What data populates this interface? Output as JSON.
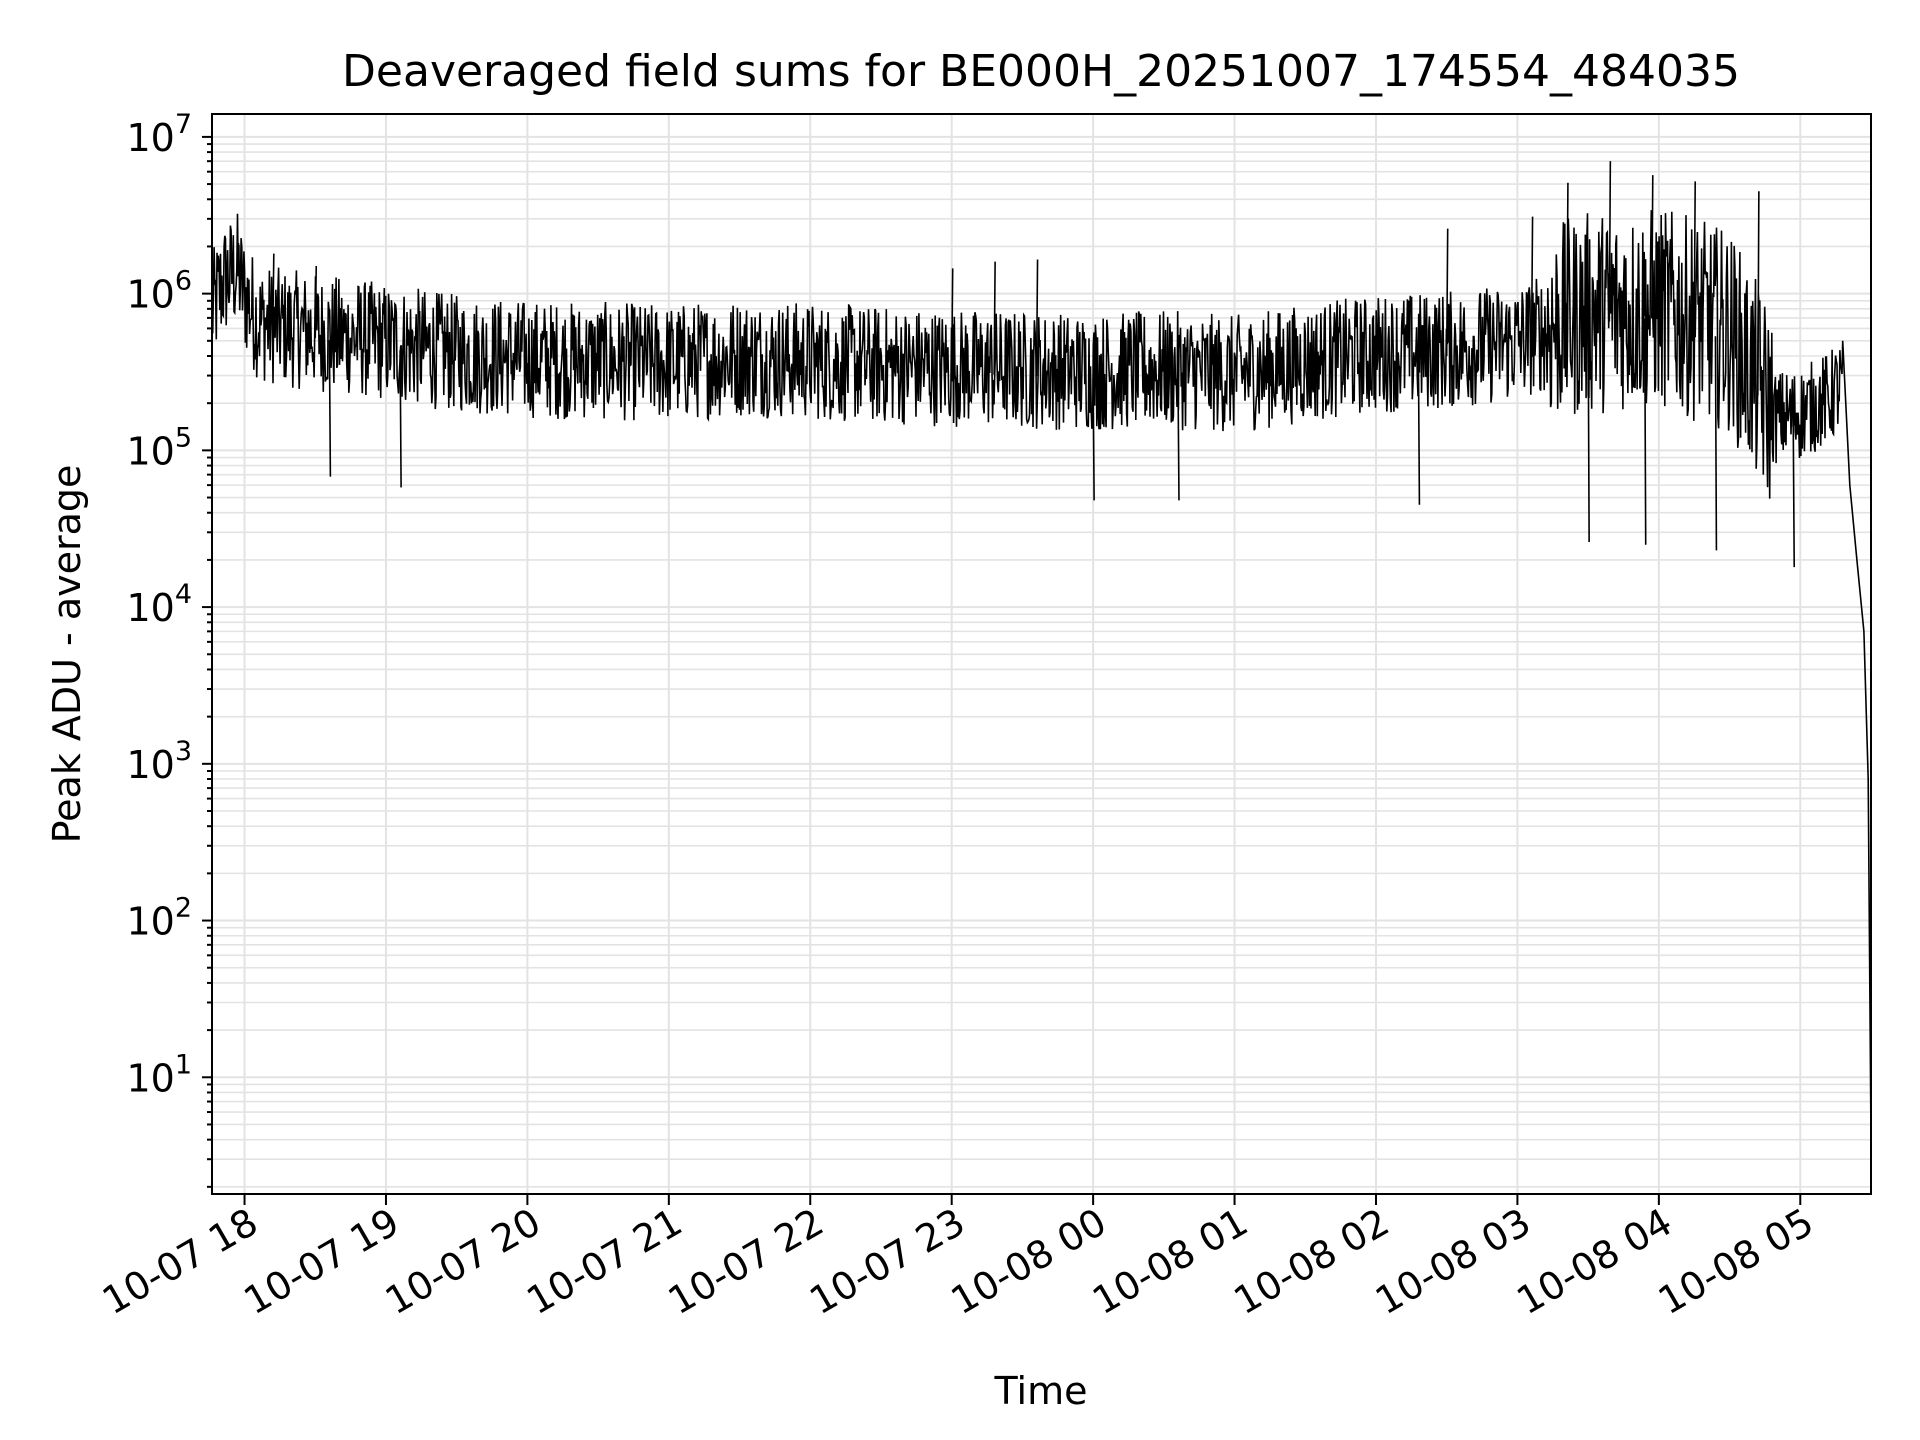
{
  "chart_data": {
    "type": "line",
    "title": "Deaveraged field sums for BE000H_20251007_174554_484035",
    "xlabel": "Time",
    "ylabel": "Peak ADU - average",
    "yscale": "log",
    "ylim": [
      1.8,
      14000000
    ],
    "y_ticks": [
      {
        "value": 10,
        "base": "10",
        "exp": "1"
      },
      {
        "value": 100,
        "base": "10",
        "exp": "2"
      },
      {
        "value": 1000,
        "base": "10",
        "exp": "3"
      },
      {
        "value": 10000,
        "base": "10",
        "exp": "4"
      },
      {
        "value": 100000,
        "base": "10",
        "exp": "5"
      },
      {
        "value": 1000000,
        "base": "10",
        "exp": "6"
      },
      {
        "value": 10000000,
        "base": "10",
        "exp": "7"
      }
    ],
    "x_start": "10-07 17:45",
    "x_range_hours": [
      -0.23,
      11.5
    ],
    "x_ticks": [
      {
        "hour": 0,
        "label": "10-07 18"
      },
      {
        "hour": 1,
        "label": "10-07 19"
      },
      {
        "hour": 2,
        "label": "10-07 20"
      },
      {
        "hour": 3,
        "label": "10-07 21"
      },
      {
        "hour": 4,
        "label": "10-07 22"
      },
      {
        "hour": 5,
        "label": "10-07 23"
      },
      {
        "hour": 6,
        "label": "10-08 00"
      },
      {
        "hour": 7,
        "label": "10-08 01"
      },
      {
        "hour": 8,
        "label": "10-08 02"
      },
      {
        "hour": 9,
        "label": "10-08 03"
      },
      {
        "hour": 10,
        "label": "10-08 04"
      },
      {
        "hour": 11,
        "label": "10-08 05"
      }
    ],
    "grid": true,
    "line_color": "#000000",
    "grid_color": "#e3e3e3",
    "series": [
      {
        "name": "deaveraged field sum",
        "hours_and_values": [
          [
            -0.23,
            700000
          ],
          [
            -0.15,
            1100000
          ],
          [
            -0.05,
            1300000
          ],
          [
            0.0,
            900000
          ],
          [
            0.1,
            600000
          ],
          [
            0.3,
            550000
          ],
          [
            0.5,
            520000
          ],
          [
            1.0,
            450000
          ],
          [
            1.5,
            380000
          ],
          [
            2.0,
            350000
          ],
          [
            2.5,
            340000
          ],
          [
            3.0,
            330000
          ],
          [
            3.5,
            360000
          ],
          [
            4.0,
            340000
          ],
          [
            4.5,
            320000
          ],
          [
            5.0,
            310000
          ],
          [
            5.5,
            300000
          ],
          [
            6.0,
            290000
          ],
          [
            6.5,
            300000
          ],
          [
            7.0,
            280000
          ],
          [
            7.5,
            330000
          ],
          [
            8.0,
            380000
          ],
          [
            8.5,
            400000
          ],
          [
            9.0,
            450000
          ],
          [
            9.5,
            650000
          ],
          [
            10.0,
            700000
          ],
          [
            10.5,
            500000
          ],
          [
            10.8,
            150000
          ],
          [
            11.0,
            160000
          ],
          [
            11.2,
            200000
          ],
          [
            11.3,
            250000
          ],
          [
            11.35,
            60000
          ],
          [
            11.4,
            20000
          ],
          [
            11.45,
            7000
          ],
          [
            11.48,
            800
          ],
          [
            11.5,
            4
          ]
        ],
        "spikes": [
          {
            "hour": -0.05,
            "value": 2100000
          },
          {
            "hour": 0.2,
            "value": 1800000
          },
          {
            "hour": 0.5,
            "value": 1500000
          },
          {
            "hour": 5.0,
            "value": 1450000
          },
          {
            "hour": 5.3,
            "value": 1600000
          },
          {
            "hour": 5.6,
            "value": 1650000
          },
          {
            "hour": 8.5,
            "value": 2600000
          },
          {
            "hour": 9.1,
            "value": 3100000
          },
          {
            "hour": 9.35,
            "value": 5100000
          },
          {
            "hour": 9.65,
            "value": 7000000
          },
          {
            "hour": 9.95,
            "value": 5700000
          },
          {
            "hour": 10.25,
            "value": 5200000
          },
          {
            "hour": 10.7,
            "value": 4500000
          },
          {
            "hour": 9.9,
            "value": 25000
          },
          {
            "hour": 9.5,
            "value": 26000
          },
          {
            "hour": 10.4,
            "value": 23000
          },
          {
            "hour": 10.95,
            "value": 18000
          },
          {
            "hour": 6.0,
            "value": 48000
          },
          {
            "hour": 6.6,
            "value": 48000
          },
          {
            "hour": 8.3,
            "value": 45000
          },
          {
            "hour": 0.6,
            "value": 68000
          },
          {
            "hour": 1.1,
            "value": 58000
          }
        ]
      }
    ]
  }
}
